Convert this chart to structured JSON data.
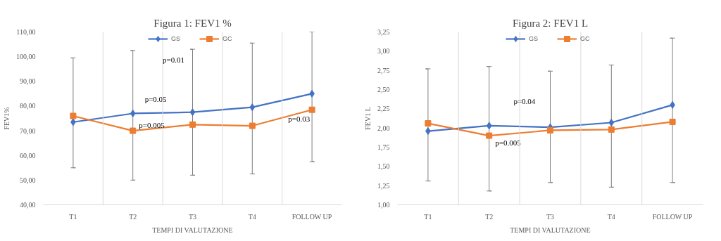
{
  "chart_data": [
    {
      "type": "line",
      "title": "Figura 1: FEV1 %",
      "xlabel": "TEMPI DI VALUTAZIONE",
      "ylabel": "FEV1%",
      "categories": [
        "T1",
        "T2",
        "T3",
        "T4",
        "FOLLOW UP"
      ],
      "series": [
        {
          "name": "GS",
          "color": "#4472c4",
          "marker": "diamond",
          "values": [
            73.5,
            77,
            77.5,
            79.5,
            85
          ],
          "errors": [
            [
              55,
              99.5
            ],
            [
              50,
              102.5
            ],
            [
              52,
              103
            ],
            [
              52.5,
              105.5
            ],
            [
              57.5,
              110
            ]
          ]
        },
        {
          "name": "GC",
          "color": "#ed7d31",
          "marker": "square",
          "values": [
            76,
            70,
            72.5,
            72,
            78.5
          ]
        }
      ],
      "ylim": [
        40,
        110
      ],
      "yticks": [
        {
          "value": 40,
          "label": "40,00"
        },
        {
          "value": 50,
          "label": "50,00"
        },
        {
          "value": 60,
          "label": "60,00"
        },
        {
          "value": 70,
          "label": "70,00"
        },
        {
          "value": 80,
          "label": "80,00"
        },
        {
          "value": 90,
          "label": "90,00"
        },
        {
          "value": 100,
          "label": "100,00"
        },
        {
          "value": 110,
          "label": "110,00"
        }
      ],
      "grid": "x",
      "legend": "top",
      "annotations": [
        "p=0.01",
        "p=0.05",
        "p=0.005",
        "p=0.03"
      ]
    },
    {
      "type": "line",
      "title": "Figura 2: FEV1 L",
      "xlabel": "TEMPI DI VALUTAZIONE",
      "ylabel": "FEV1 L",
      "categories": [
        "T1",
        "T2",
        "T3",
        "T4",
        "FOLLOW UP"
      ],
      "series": [
        {
          "name": "GS",
          "color": "#4472c4",
          "marker": "diamond",
          "values": [
            1.96,
            2.03,
            2.01,
            2.07,
            2.3
          ],
          "errors": [
            [
              1.31,
              2.77
            ],
            [
              1.18,
              2.8
            ],
            [
              1.29,
              2.74
            ],
            [
              1.23,
              2.82
            ],
            [
              1.29,
              3.17
            ]
          ]
        },
        {
          "name": "GC",
          "color": "#ed7d31",
          "marker": "square",
          "values": [
            2.06,
            1.9,
            1.97,
            1.98,
            2.08
          ]
        }
      ],
      "ylim": [
        1,
        3.25
      ],
      "yticks": [
        {
          "value": 1,
          "label": "1,00"
        },
        {
          "value": 1.25,
          "label": "1,25"
        },
        {
          "value": 1.5,
          "label": "1,50"
        },
        {
          "value": 1.75,
          "label": "1,75"
        },
        {
          "value": 2,
          "label": "2,00"
        },
        {
          "value": 2.25,
          "label": "2,25"
        },
        {
          "value": 2.5,
          "label": "2,50"
        },
        {
          "value": 2.75,
          "label": "2,75"
        },
        {
          "value": 3,
          "label": "3,00"
        },
        {
          "value": 3.25,
          "label": "3,25"
        }
      ],
      "grid": "x",
      "legend": "top",
      "annotations": [
        "p=0.04",
        "p=0.005"
      ]
    }
  ]
}
